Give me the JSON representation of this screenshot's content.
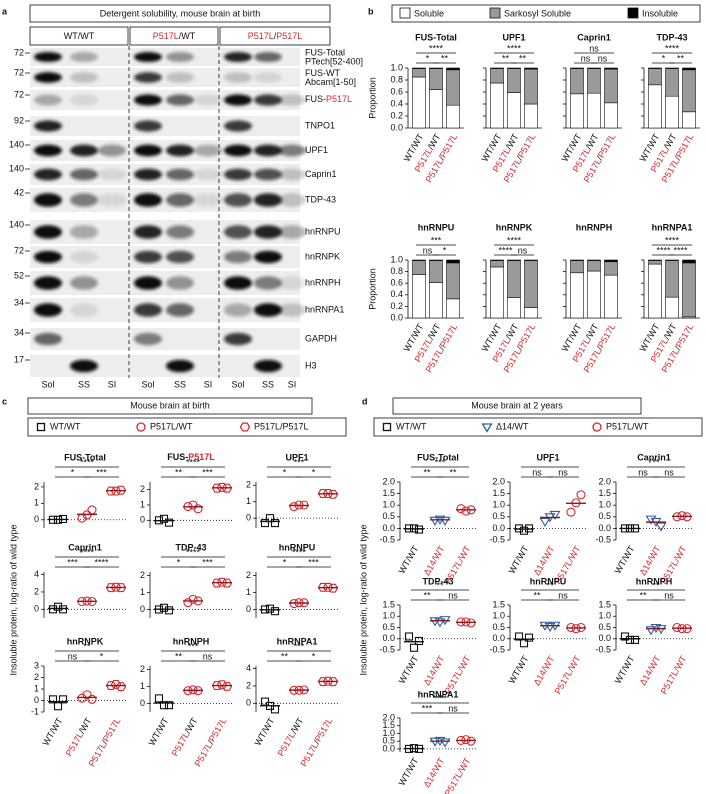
{
  "panel_labels": [
    "a",
    "b",
    "c",
    "d"
  ],
  "blot": {
    "title": "Detergent solubility, mouse brain at birth",
    "highlight": [
      "P517L"
    ],
    "genotypes": [
      [
        "WT/WT"
      ],
      [
        "P517L",
        "/WT"
      ],
      [
        "P517L",
        "/",
        "P517L"
      ]
    ],
    "fractions": [
      "Sol",
      "SS",
      "SI"
    ],
    "rows": [
      {
        "kda": 72,
        "name": "FUS-Total",
        "sub": "PTech[52-400]"
      },
      {
        "kda": 72,
        "name": "FUS-WT",
        "sub": "Abcam[1-50]"
      },
      {
        "kda": 72,
        "name": [
          "FUS-",
          "P517L"
        ]
      },
      {
        "kda": 92,
        "name": "TNPO1"
      },
      {
        "kda": 140,
        "name": "UPF1"
      },
      {
        "kda": 140,
        "name": "Caprin1"
      },
      {
        "kda": 42,
        "name": "TDP-43"
      },
      {
        "kda": 140,
        "name": "hnRNPU"
      },
      {
        "kda": 72,
        "name": "hnRNPK"
      },
      {
        "kda": 52,
        "name": "hnRNPH"
      },
      {
        "kda": 34,
        "name": "hnRNPA1"
      },
      {
        "kda": 34,
        "name": "GAPDH"
      },
      {
        "kda": 17,
        "name": "H3"
      }
    ]
  },
  "chart_data": [
    {
      "type": "stacked_bar",
      "ylabel": "Proportion",
      "series_names": [
        "Soluble",
        "Sarkosyl Soluble",
        "Insoluble"
      ],
      "colors": [
        "#ffffff",
        "#9a9a9a",
        "#000000"
      ],
      "categories": [
        [
          "WT/WT"
        ],
        [
          "P517L",
          "/WT"
        ],
        [
          "P517L",
          "/",
          "P517L"
        ]
      ],
      "highlight": [
        "P517L"
      ],
      "ylim": [
        0,
        1
      ],
      "yticks": [
        {
          "value": 0,
          "label": "0.0"
        },
        0.2,
        0.4,
        0.6,
        0.8,
        {
          "value": 1,
          "label": "1.0"
        }
      ],
      "panels": [
        {
          "title": "FUS-Total",
          "values": [
            [
              0.85,
              0.64,
              0.38
            ],
            [
              0.14,
              0.35,
              0.59
            ],
            [
              0.01,
              0.01,
              0.03
            ]
          ],
          "significance": [
            "****",
            "*",
            "**"
          ]
        },
        {
          "title": "UPF1",
          "values": [
            [
              0.75,
              0.59,
              0.4
            ],
            [
              0.24,
              0.4,
              0.58
            ],
            [
              0.01,
              0.01,
              0.02
            ]
          ],
          "significance": [
            "****",
            "**",
            "**"
          ]
        },
        {
          "title": "Caprin1",
          "values": [
            [
              0.57,
              0.58,
              0.42
            ],
            [
              0.42,
              0.41,
              0.56
            ],
            [
              0.01,
              0.01,
              0.02
            ]
          ],
          "significance": [
            "ns",
            "ns",
            "ns"
          ]
        },
        {
          "title": "TDP-43",
          "values": [
            [
              0.72,
              0.53,
              0.27
            ],
            [
              0.27,
              0.46,
              0.7
            ],
            [
              0.01,
              0.01,
              0.03
            ]
          ],
          "significance": [
            "****",
            "*",
            "**"
          ]
        },
        {
          "title": "hnRNPU",
          "values": [
            [
              0.75,
              0.61,
              0.33
            ],
            [
              0.24,
              0.38,
              0.62
            ],
            [
              0.01,
              0.01,
              0.05
            ]
          ],
          "significance": [
            "***",
            "ns",
            "*"
          ]
        },
        {
          "title": "hnRNPK",
          "values": [
            [
              0.88,
              0.35,
              0.18
            ],
            [
              0.11,
              0.64,
              0.81
            ],
            [
              0.01,
              0.01,
              0.01
            ]
          ],
          "significance": [
            "****",
            "****",
            "ns"
          ]
        },
        {
          "title": "hnRNPH",
          "values": [
            [
              0.78,
              0.81,
              0.74
            ],
            [
              0.21,
              0.18,
              0.23
            ],
            [
              0.01,
              0.01,
              0.03
            ]
          ],
          "significance": []
        },
        {
          "title": "hnRNPA1",
          "values": [
            [
              0.93,
              0.36,
              0.02
            ],
            [
              0.06,
              0.63,
              0.93
            ],
            [
              0.01,
              0.01,
              0.05
            ]
          ],
          "significance": [
            "****",
            "****",
            "****"
          ]
        }
      ]
    },
    {
      "type": "scatter",
      "title": "Mouse brain at birth",
      "ylabel": "Insoluble protein, log-ratio of wild type",
      "groups": [
        {
          "name": "WT/WT",
          "marker": "square",
          "color": "#111111"
        },
        {
          "name": "P517L/WT",
          "marker": "circle",
          "color": "#d7262f"
        },
        {
          "name": "P517L/P517L",
          "marker": "hexagon",
          "color": "#d7262f"
        }
      ],
      "categories": [
        [
          "WT/WT"
        ],
        [
          "P517L",
          "/WT"
        ],
        [
          "P517L",
          "/",
          "P517L"
        ]
      ],
      "highlight": [
        "P517L"
      ],
      "panels": [
        {
          "title": "FUS-Total",
          "ylim": [
            -0.5,
            2.3
          ],
          "yticks": [
            0,
            1,
            2
          ],
          "values": [
            [
              0,
              0,
              0.05
            ],
            [
              0.1,
              0.3,
              0.6
            ],
            [
              1.75,
              1.75,
              1.8
            ]
          ],
          "means": [
            0.02,
            0.33,
            1.77
          ],
          "significance": [
            "****",
            "*",
            "***"
          ]
        },
        {
          "title": [
            "FUS-",
            "P517L"
          ],
          "ylim": [
            -0.5,
            2.5
          ],
          "yticks": [
            0,
            1,
            2
          ],
          "values": [
            [
              0,
              0.1,
              -0.15
            ],
            [
              0.9,
              1.0,
              0.75
            ],
            [
              2.1,
              2.15,
              2.1
            ]
          ],
          "means": [
            -0.02,
            0.88,
            2.12
          ],
          "significance": [
            "****",
            "**",
            "***"
          ]
        },
        {
          "title": "UPF1",
          "ylim": [
            -0.6,
            2.2
          ],
          "yticks": [
            0,
            1,
            2
          ],
          "values": [
            [
              -0.3,
              0,
              -0.3
            ],
            [
              0.7,
              0.8,
              0.8
            ],
            [
              1.5,
              1.5,
              1.45
            ]
          ],
          "means": [
            -0.2,
            0.77,
            1.48
          ],
          "significance": [
            "***",
            "*",
            "*"
          ]
        },
        {
          "title": "Caprin1",
          "ylim": [
            -1,
            4.3
          ],
          "yticks": [
            0,
            2,
            4
          ],
          "values": [
            [
              0,
              0.3,
              0
            ],
            [
              0.9,
              0.95,
              0.9
            ],
            [
              2.5,
              2.55,
              2.5
            ]
          ],
          "means": [
            0.1,
            0.92,
            2.52
          ],
          "significance": [
            "****",
            "***",
            "****"
          ]
        },
        {
          "title": "TDP-43",
          "ylim": [
            -0.5,
            2.2
          ],
          "yticks": [
            0,
            1,
            2
          ],
          "values": [
            [
              0,
              0.1,
              -0.05
            ],
            [
              0.4,
              0.6,
              0.5
            ],
            [
              1.55,
              1.6,
              1.55
            ]
          ],
          "means": [
            0.02,
            0.5,
            1.57
          ],
          "significance": [
            "****",
            "*",
            "***"
          ]
        },
        {
          "title": "hnRNPU",
          "ylim": [
            -0.5,
            2.2
          ],
          "yticks": [
            0,
            1,
            2
          ],
          "values": [
            [
              0,
              0.05,
              -0.1
            ],
            [
              0.35,
              0.4,
              0.4
            ],
            [
              1.3,
              1.3,
              1.25
            ]
          ],
          "means": [
            -0.02,
            0.38,
            1.28
          ],
          "significance": [
            "****",
            "*",
            "***"
          ]
        },
        {
          "title": "hnRNPK",
          "ylim": [
            -1,
            3
          ],
          "yticks": [
            -1,
            0,
            1,
            2,
            3
          ],
          "values": [
            [
              0.1,
              -0.5,
              0.1
            ],
            [
              0.2,
              0.5,
              0.1
            ],
            [
              1.3,
              1.4,
              1.2
            ]
          ],
          "means": [
            -0.1,
            0.27,
            1.3
          ],
          "significance": [
            "**",
            "ns",
            "*"
          ]
        },
        {
          "title": "hnRNPH",
          "ylim": [
            -0.5,
            2.2
          ],
          "yticks": [
            0,
            1,
            2
          ],
          "values": [
            [
              0.3,
              -0.1,
              -0.1
            ],
            [
              0.75,
              0.8,
              0.75
            ],
            [
              1.05,
              1.1,
              1.0
            ]
          ],
          "means": [
            0.03,
            0.77,
            1.05
          ],
          "significance": [
            "***",
            "**",
            "ns"
          ]
        },
        {
          "title": "hnRNPA1",
          "ylim": [
            -1,
            4.3
          ],
          "yticks": [
            0,
            2,
            4
          ],
          "values": [
            [
              0.2,
              -0.3,
              -0.7
            ],
            [
              1.5,
              1.5,
              1.55
            ],
            [
              2.5,
              2.55,
              2.5
            ]
          ],
          "means": [
            -0.27,
            1.52,
            2.52
          ],
          "significance": [
            "***",
            "**",
            "*"
          ]
        }
      ]
    },
    {
      "type": "scatter",
      "title": "Mouse brain at 2 years",
      "ylabel": "Insoluble protein, log-ratio of wild type",
      "groups": [
        {
          "name": "WT/WT",
          "marker": "square",
          "color": "#111111"
        },
        {
          "name": "Δ14/WT",
          "marker": "triangle",
          "color": "#2a5fa0"
        },
        {
          "name": "P517L/WT",
          "marker": "circle",
          "color": "#d7262f"
        }
      ],
      "categories": [
        [
          "WT/WT"
        ],
        [
          "Δ14/WT"
        ],
        [
          "P517L/WT"
        ]
      ],
      "highlight": [
        "Δ14/WT",
        "P517L/WT"
      ],
      "panels": [
        {
          "title": "FUS-Total",
          "ylim": [
            -0.5,
            2.0
          ],
          "yticks": [
            -0.5,
            {
              "value": 0,
              "label": "0.0"
            },
            0.5,
            {
              "value": 1,
              "label": "1.0"
            },
            1.5,
            {
              "value": 2,
              "label": "2.0"
            }
          ],
          "values": [
            [
              0,
              0,
              -0.05
            ],
            [
              0.35,
              0.4,
              0.35
            ],
            [
              0.85,
              0.75,
              0.8
            ]
          ],
          "means": [
            -0.02,
            0.37,
            0.8
          ],
          "significance": [
            "***",
            "**",
            "**"
          ]
        },
        {
          "title": "UPF1",
          "ylim": [
            -0.5,
            2.0
          ],
          "yticks": [
            -0.5,
            {
              "value": 0,
              "label": "0.0"
            },
            0.5,
            {
              "value": 1,
              "label": "1.0"
            },
            1.5,
            {
              "value": 2,
              "label": "2.0"
            }
          ],
          "values": [
            [
              0,
              -0.1,
              0
            ],
            [
              0.3,
              0.5,
              0.6
            ],
            [
              0.7,
              1.1,
              1.45
            ]
          ],
          "means": [
            -0.03,
            0.47,
            1.08
          ],
          "significance": [
            "*",
            "ns",
            "ns"
          ]
        },
        {
          "title": "Caprin1",
          "ylim": [
            -0.5,
            2.0
          ],
          "yticks": [
            -0.5,
            {
              "value": 0,
              "label": "0.0"
            },
            0.5,
            {
              "value": 1,
              "label": "1.0"
            },
            1.5,
            {
              "value": 2,
              "label": "2.0"
            }
          ],
          "values": [
            [
              0,
              0,
              0
            ],
            [
              0.4,
              0.3,
              0.1
            ],
            [
              0.5,
              0.55,
              0.5
            ]
          ],
          "means": [
            0,
            0.27,
            0.52
          ],
          "significance": [
            "**",
            "ns",
            "ns"
          ]
        },
        {
          "title": "TDP-43",
          "ylim": [
            -0.5,
            1.5
          ],
          "yticks": [
            -0.5,
            {
              "value": 0,
              "label": "0.0"
            },
            0.5,
            {
              "value": 1,
              "label": "1.0"
            },
            1.5
          ],
          "values": [
            [
              0.1,
              -0.4,
              -0.1
            ],
            [
              0.8,
              0.75,
              0.85
            ],
            [
              0.75,
              0.75,
              0.7
            ]
          ],
          "means": [
            -0.13,
            0.8,
            0.73
          ],
          "significance": [
            "**",
            "**",
            "ns"
          ]
        },
        {
          "title": "hnRNPU",
          "ylim": [
            -0.5,
            1.5
          ],
          "yticks": [
            -0.5,
            {
              "value": 0,
              "label": "0.0"
            },
            0.5,
            {
              "value": 1,
              "label": "1.0"
            },
            1.5
          ],
          "values": [
            [
              0.1,
              -0.2,
              0.05
            ],
            [
              0.6,
              0.55,
              0.6
            ],
            [
              0.5,
              0.45,
              0.5
            ]
          ],
          "means": [
            -0.02,
            0.58,
            0.48
          ],
          "significance": [
            "**",
            "**",
            "ns"
          ]
        },
        {
          "title": "hnRNPH",
          "ylim": [
            -0.5,
            1.5
          ],
          "yticks": [
            -0.5,
            {
              "value": 0,
              "label": "0.0"
            },
            0.5,
            {
              "value": 1,
              "label": "1.0"
            },
            1.5
          ],
          "values": [
            [
              0.1,
              -0.05,
              -0.05
            ],
            [
              0.4,
              0.5,
              0.45
            ],
            [
              0.5,
              0.45,
              0.45
            ]
          ],
          "means": [
            0,
            0.45,
            0.47
          ],
          "significance": [
            "**",
            "**",
            "ns"
          ]
        },
        {
          "title": "hnRNPA1",
          "ylim": [
            -0.2,
            2.0
          ],
          "yticks": [
            {
              "value": 0,
              "label": "0.0"
            },
            0.5,
            {
              "value": 1,
              "label": "1.0"
            },
            1.5,
            {
              "value": 2,
              "label": "2.0"
            }
          ],
          "values": [
            [
              0,
              0.05,
              0
            ],
            [
              0.5,
              0.55,
              0.45
            ],
            [
              0.55,
              0.6,
              0.5
            ]
          ],
          "means": [
            0.02,
            0.5,
            0.55
          ],
          "significance": [
            "****",
            "***",
            "ns"
          ]
        }
      ]
    }
  ]
}
